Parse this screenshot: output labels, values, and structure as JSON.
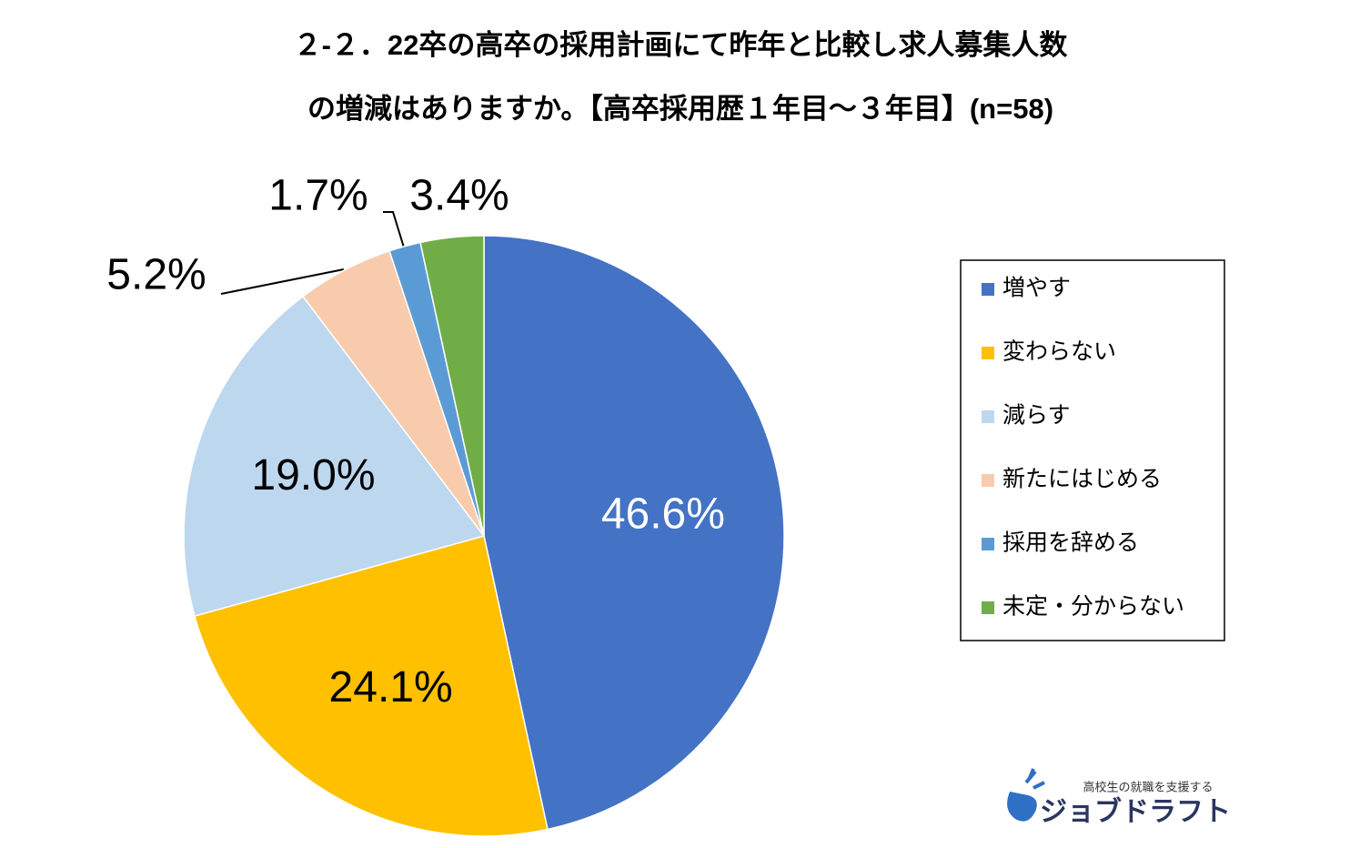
{
  "chart_data": {
    "type": "pie",
    "title": [
      "２-２．22卒の高卒の採用計画にて昨年と比較し求人募集人数",
      "の増減はありますか。【高卒採用歴１年目～３年目】(n=58)"
    ],
    "categories": [
      "増やす",
      "変わらない",
      "減らす",
      "新たにはじめる",
      "採用を辞める",
      "未定・分からない"
    ],
    "values": [
      46.6,
      24.1,
      19.0,
      5.2,
      1.7,
      3.4
    ],
    "value_labels": [
      "46.6%",
      "24.1%",
      "19.0%",
      "5.2%",
      "1.7%",
      "3.4%"
    ],
    "colors": [
      "#4472c4",
      "#ffc000",
      "#bdd7ee",
      "#f8cbad",
      "#5b9bd5",
      "#70ad47"
    ],
    "legend": "right"
  },
  "logo": {
    "tagline": "高校生の就職を支援する",
    "name": "ジョブドラフト"
  }
}
